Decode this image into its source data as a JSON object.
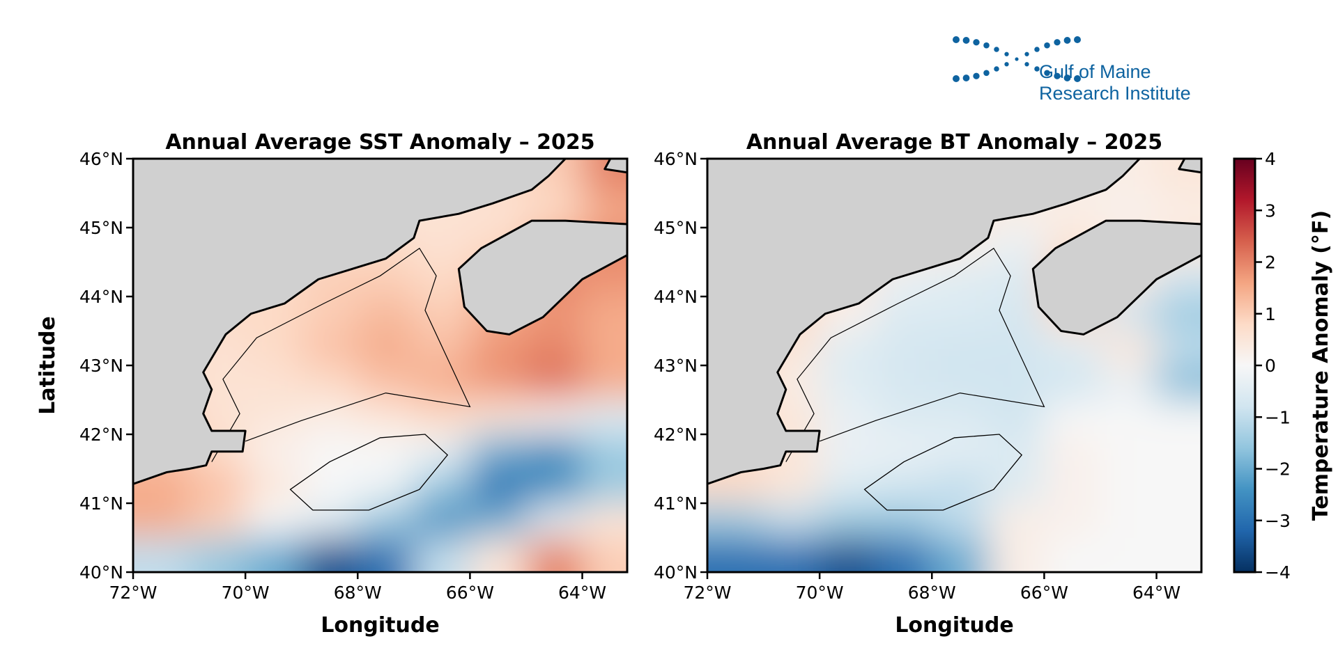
{
  "logo": {
    "line1": "Gulf of Maine",
    "line2": "Research Institute",
    "color": "#0e63a0"
  },
  "chart_data": [
    {
      "type": "heatmap",
      "title": "Annual Average SST Anomaly – 2025",
      "xlabel": "Longitude",
      "ylabel": "Latitude",
      "xlim": [
        -72,
        -63.2
      ],
      "ylim": [
        40,
        46
      ],
      "xticks": [
        {
          "value": -72,
          "label": "72°W"
        },
        {
          "value": -70,
          "label": "70°W"
        },
        {
          "value": -68,
          "label": "68°W"
        },
        {
          "value": -66,
          "label": "66°W"
        },
        {
          "value": -64,
          "label": "64°W"
        }
      ],
      "yticks": [
        {
          "value": 46,
          "label": "46°N"
        },
        {
          "value": 45,
          "label": "45°N"
        },
        {
          "value": 44,
          "label": "44°N"
        },
        {
          "value": 43,
          "label": "43°N"
        },
        {
          "value": 42,
          "label": "42°N"
        },
        {
          "value": 41,
          "label": "41°N"
        },
        {
          "value": 40,
          "label": "40°N"
        }
      ],
      "lon_centers": [
        -71.5,
        -70.5,
        -69.5,
        -68.5,
        -67.5,
        -66.5,
        -65.5,
        -64.5,
        -63.5
      ],
      "lat_centers": [
        45.75,
        45.25,
        44.75,
        44.25,
        43.75,
        43.25,
        42.75,
        42.25,
        41.75,
        41.25,
        40.75,
        40.25
      ],
      "values": [
        [
          0.5,
          0.5,
          0.5,
          0.5,
          0.5,
          0.5,
          0.8,
          1.0,
          2.0
        ],
        [
          0.5,
          0.5,
          0.5,
          0.5,
          0.5,
          0.6,
          0.6,
          0.8,
          1.5
        ],
        [
          0.5,
          0.5,
          0.5,
          0.8,
          0.8,
          0.6,
          0.8,
          1.5,
          2.0
        ],
        [
          0.8,
          0.8,
          0.8,
          1.0,
          1.0,
          0.8,
          1.2,
          2.0,
          1.8
        ],
        [
          0.8,
          0.8,
          0.8,
          1.0,
          1.3,
          1.0,
          1.5,
          1.8,
          1.5
        ],
        [
          0.8,
          0.6,
          0.8,
          1.2,
          1.5,
          1.2,
          1.8,
          2.0,
          1.5
        ],
        [
          0.8,
          0.6,
          0.6,
          0.8,
          1.2,
          1.5,
          1.8,
          2.2,
          1.5
        ],
        [
          1.0,
          0.6,
          0.5,
          0.3,
          0.5,
          0.8,
          0.5,
          0.2,
          -0.5
        ],
        [
          1.2,
          0.8,
          0.2,
          0.0,
          0.0,
          -0.3,
          -2.0,
          -2.5,
          -1.5
        ],
        [
          1.5,
          1.2,
          0.5,
          0.0,
          -0.2,
          -1.5,
          -3.0,
          -2.5,
          -1.5
        ],
        [
          1.5,
          1.0,
          0.0,
          -0.5,
          -1.5,
          -2.5,
          -2.0,
          -0.5,
          0.5
        ],
        [
          -1.0,
          -1.5,
          -2.0,
          -3.5,
          -3.0,
          -1.0,
          0.5,
          2.0,
          1.0
        ]
      ]
    },
    {
      "type": "heatmap",
      "title": "Annual Average BT Anomaly – 2025",
      "xlabel": "Longitude",
      "ylabel": "",
      "xlim": [
        -72,
        -63.2
      ],
      "ylim": [
        40,
        46
      ],
      "xticks": [
        {
          "value": -72,
          "label": "72°W"
        },
        {
          "value": -70,
          "label": "70°W"
        },
        {
          "value": -68,
          "label": "68°W"
        },
        {
          "value": -66,
          "label": "66°W"
        },
        {
          "value": -64,
          "label": "64°W"
        }
      ],
      "yticks": [
        {
          "value": 46,
          "label": "46°N"
        },
        {
          "value": 45,
          "label": "45°N"
        },
        {
          "value": 44,
          "label": "44°N"
        },
        {
          "value": 43,
          "label": "43°N"
        },
        {
          "value": 42,
          "label": "42°N"
        },
        {
          "value": 41,
          "label": "41°N"
        },
        {
          "value": 40,
          "label": "40°N"
        }
      ],
      "lon_centers": [
        -71.5,
        -70.5,
        -69.5,
        -68.5,
        -67.5,
        -66.5,
        -65.5,
        -64.5,
        -63.5
      ],
      "lat_centers": [
        45.75,
        45.25,
        44.75,
        44.25,
        43.75,
        43.25,
        42.75,
        42.25,
        41.75,
        41.25,
        40.75,
        40.25
      ],
      "values": [
        [
          0.5,
          0.5,
          0.5,
          0.5,
          0.5,
          0.3,
          0.3,
          0.3,
          0.5
        ],
        [
          0.5,
          0.5,
          0.5,
          0.5,
          0.5,
          0.3,
          0.3,
          0.2,
          0.3
        ],
        [
          0.8,
          0.8,
          0.8,
          0.5,
          0.3,
          -0.3,
          0.5,
          0.3,
          0.5
        ],
        [
          1.0,
          0.8,
          0.5,
          -0.3,
          -0.5,
          -0.6,
          1.0,
          0.5,
          -0.8
        ],
        [
          1.0,
          0.8,
          0.2,
          -0.6,
          -0.6,
          -0.7,
          0.8,
          -0.8,
          -1.5
        ],
        [
          1.0,
          0.5,
          -0.5,
          -0.7,
          -0.8,
          -0.8,
          -0.5,
          0.5,
          -1.0
        ],
        [
          0.8,
          0.3,
          -0.5,
          -0.7,
          -0.8,
          -0.8,
          -0.8,
          -0.3,
          -1.8
        ],
        [
          0.8,
          0.5,
          -0.3,
          -0.6,
          -0.6,
          -0.8,
          0.0,
          0.0,
          0.0
        ],
        [
          0.8,
          0.5,
          -0.3,
          -0.3,
          -0.4,
          -0.6,
          0.2,
          0.0,
          0.0
        ],
        [
          0.8,
          0.5,
          -0.5,
          -0.8,
          -1.0,
          -0.6,
          0.2,
          0.0,
          0.0
        ],
        [
          -1.5,
          -1.0,
          -1.5,
          -1.5,
          -1.0,
          0.3,
          0.2,
          0.0,
          0.0
        ],
        [
          -3.0,
          -3.0,
          -3.5,
          -3.0,
          -2.0,
          0.3,
          0.0,
          0.0,
          0.0
        ]
      ]
    }
  ],
  "colorbar": {
    "label": "Temperature Anomaly (°F)",
    "range": [
      -4,
      4
    ],
    "ticks": [
      {
        "value": 4,
        "label": "4"
      },
      {
        "value": 3,
        "label": "3"
      },
      {
        "value": 2,
        "label": "2"
      },
      {
        "value": 1,
        "label": "1"
      },
      {
        "value": 0,
        "label": "0"
      },
      {
        "value": -1,
        "label": "−1"
      },
      {
        "value": -2,
        "label": "−2"
      },
      {
        "value": -3,
        "label": "−3"
      },
      {
        "value": -4,
        "label": "−4"
      }
    ],
    "colormap": [
      "#053061",
      "#2166ac",
      "#4393c3",
      "#92c5de",
      "#d1e5f0",
      "#f7f7f7",
      "#fddbc7",
      "#f4a582",
      "#d6604d",
      "#b2182b",
      "#67001f"
    ]
  },
  "colors": {
    "land": "#d0d0d0",
    "coastline": "#000000"
  }
}
